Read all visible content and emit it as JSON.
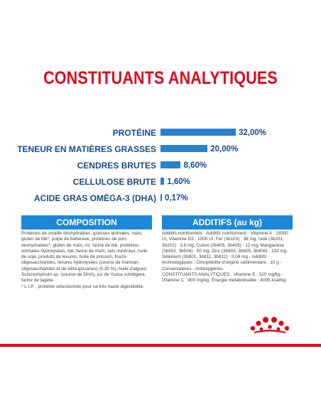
{
  "title": "CONSTITUANTS ANALYTIQUES",
  "chart_data": {
    "type": "bar",
    "orientation": "horizontal",
    "categories": [
      "PROTÉINE",
      "TENEUR EN MATIÈRES GRASSES",
      "CENDRES BRUTES",
      "CELLULOSE BRUTE",
      "ACIDE GRAS OMÉGA-3 (DHA)"
    ],
    "values": [
      32.0,
      20.0,
      8.6,
      1.6,
      0.17
    ],
    "value_labels": [
      "32,00%",
      "20,00%",
      "8,60%",
      "1,60%",
      "0,17%"
    ],
    "title": "CONSTITUANTS ANALYTIQUES",
    "xlabel": "",
    "ylabel": "",
    "xlim": [
      0,
      32
    ],
    "grid": false
  },
  "composition": {
    "heading": "COMPOSITION",
    "text": "Protéines de volaille déshydratées, graisses animales, maïs, gluten de blé*, pulpe de betterave, protéines de porc déshydratées*, gluten de maïs, riz, farine de blé, protéines animales hydrolysées, blé, farine de maïs, sels minéraux, huile de soja, produits de levures, huile de poisson, fructo-oligosaccharides, levures hydrolysées (source de mannan-oligosaccharides et de bêta-glucanes) (0,30 %), huile d'algues Schizochytrium sp. (source de DHA), jus de Yucca schidigera, farine de tagète.\n* L.I.P. : protéine sélectionnée pour sa très haute digestibilité."
  },
  "additifs": {
    "heading": "ADDITIFS (au kg)",
    "text": "Additifs nutritionnels : Additifs nutritionnels : Vitamine A : 15500 UI, Vitamine D3 : 1000 UI, Fer (3b103) : 38 mg, Iode (3b201, 3b202) : 3,8 mg, Cuivre (3b405, 3b406) : 12 mg, Manganèse (3b502, 3b504) : 50 mg, Zinc (3b603, 3b605, 3b606) : 132 mg, Sélénium (3b801, 3b811, 3b812) : 0,06 mg - Additifs technologiques : Clinoptilolite d'origine sédimentaire : 10 g - Conservateurs - Antioxygènes.\nCONSTITUANTS ANALYTIQUES : Vitamine E : 520 mg/kg - Vitamine C : 400 mg/kg. Énergie métabolisable : 4095 kcal/kg."
  },
  "colors": {
    "title": "#e1061a",
    "label": "#1a4a8a",
    "bar": "#2a7fd0",
    "section_header": "#1e88d8",
    "brand_red": "#e1061a"
  },
  "logo_icon": "royal-canin-crown-icon"
}
